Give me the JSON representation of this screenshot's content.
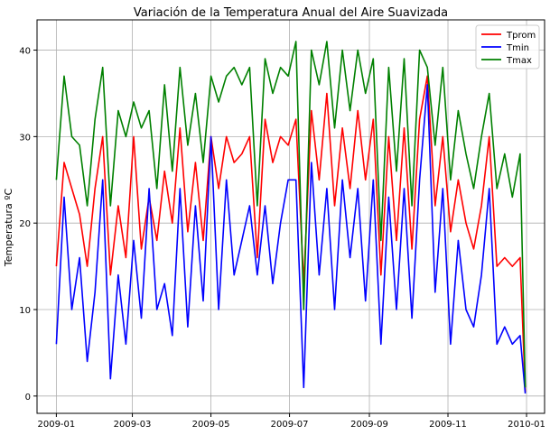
{
  "chart_data": {
    "type": "line",
    "title": "Variación de la Temperatura Anual del Aire Suavizada",
    "xlabel": "",
    "ylabel": "Temperatura ºC",
    "x_tick_labels": [
      "2009-01",
      "2009-03",
      "2009-05",
      "2009-07",
      "2009-09",
      "2009-11",
      "2010-01"
    ],
    "x_tick_dates": [
      "2009-01-01",
      "2009-03-01",
      "2009-05-01",
      "2009-07-01",
      "2009-09-01",
      "2009-11-01",
      "2010-01-01"
    ],
    "xlim": [
      "2008-12-17",
      "2010-01-15"
    ],
    "y_ticks": [
      0,
      10,
      20,
      30,
      40
    ],
    "ylim": [
      -2,
      43.5
    ],
    "grid": true,
    "legend_position": "top-right",
    "x": [
      "2009-01-01",
      "2009-01-07",
      "2009-01-13",
      "2009-01-19",
      "2009-01-25",
      "2009-01-31",
      "2009-02-06",
      "2009-02-12",
      "2009-02-18",
      "2009-02-24",
      "2009-03-02",
      "2009-03-08",
      "2009-03-14",
      "2009-03-20",
      "2009-03-26",
      "2009-04-01",
      "2009-04-07",
      "2009-04-13",
      "2009-04-19",
      "2009-04-25",
      "2009-05-01",
      "2009-05-07",
      "2009-05-13",
      "2009-05-19",
      "2009-05-25",
      "2009-05-31",
      "2009-06-06",
      "2009-06-12",
      "2009-06-18",
      "2009-06-24",
      "2009-06-30",
      "2009-07-06",
      "2009-07-12",
      "2009-07-18",
      "2009-07-24",
      "2009-07-30",
      "2009-08-05",
      "2009-08-11",
      "2009-08-17",
      "2009-08-23",
      "2009-08-29",
      "2009-09-04",
      "2009-09-10",
      "2009-09-16",
      "2009-09-22",
      "2009-09-28",
      "2009-10-04",
      "2009-10-10",
      "2009-10-16",
      "2009-10-22",
      "2009-10-28",
      "2009-11-03",
      "2009-11-09",
      "2009-11-15",
      "2009-11-21",
      "2009-11-27",
      "2009-12-03",
      "2009-12-09",
      "2009-12-15",
      "2009-12-21",
      "2009-12-27",
      "2009-12-31"
    ],
    "series": [
      {
        "name": "Tprom",
        "color": "#ff0000",
        "values": [
          15,
          27,
          24,
          21,
          15,
          24,
          30,
          14,
          22,
          16,
          30,
          17,
          23,
          18,
          26,
          20,
          31,
          19,
          27,
          18,
          30,
          24,
          30,
          27,
          28,
          30,
          16,
          32,
          27,
          30,
          29,
          32,
          13,
          33,
          25,
          35,
          22,
          31,
          24,
          33,
          25,
          32,
          14,
          30,
          18,
          31,
          17,
          32,
          37,
          22,
          30,
          19,
          25,
          20,
          17,
          22,
          30,
          15,
          16,
          15,
          16,
          0.5
        ]
      },
      {
        "name": "Tmin",
        "color": "#0000ff",
        "values": [
          6,
          23,
          10,
          16,
          4,
          12,
          25,
          2,
          14,
          6,
          18,
          9,
          24,
          10,
          13,
          7,
          24,
          8,
          22,
          11,
          30,
          10,
          25,
          14,
          18,
          22,
          14,
          22,
          13,
          20,
          25,
          25,
          1,
          27,
          14,
          24,
          10,
          25,
          16,
          24,
          11,
          25,
          6,
          23,
          10,
          24,
          9,
          25,
          36,
          12,
          24,
          6,
          18,
          10,
          8,
          14,
          24,
          6,
          8,
          6,
          7,
          0.3
        ]
      },
      {
        "name": "Tmax",
        "color": "#008000",
        "values": [
          25,
          37,
          30,
          29,
          22,
          32,
          38,
          22,
          33,
          30,
          34,
          31,
          33,
          24,
          36,
          26,
          38,
          29,
          35,
          27,
          37,
          34,
          37,
          38,
          36,
          38,
          22,
          39,
          35,
          38,
          37,
          41,
          10,
          40,
          36,
          41,
          31,
          40,
          33,
          40,
          35,
          39,
          18,
          38,
          26,
          39,
          22,
          40,
          38,
          29,
          38,
          25,
          33,
          28,
          24,
          30,
          35,
          24,
          28,
          23,
          28,
          1
        ]
      }
    ]
  }
}
